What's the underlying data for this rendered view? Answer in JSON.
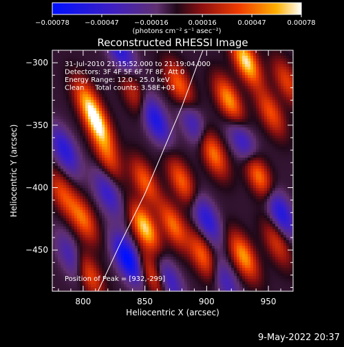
{
  "chart_data": {
    "type": "heatmap",
    "title": "Reconstructed RHESSI Image",
    "xlabel": "Heliocentric X (arcsec)",
    "ylabel": "Heliocentric Y (arcsec)",
    "xlim": [
      775,
      970
    ],
    "ylim": [
      -483,
      -290
    ],
    "xticks": [
      {
        "v": 800,
        "label": "800"
      },
      {
        "v": 850,
        "label": "850"
      },
      {
        "v": 900,
        "label": "900"
      },
      {
        "v": 950,
        "label": "950"
      }
    ],
    "yticks": [
      {
        "v": -300,
        "label": "−300"
      },
      {
        "v": -350,
        "label": "−350"
      },
      {
        "v": -400,
        "label": "−400"
      },
      {
        "v": -450,
        "label": "−450"
      }
    ],
    "annotations": [
      "31-Jul-2010 21:15:52.000 to 21:19:04.000",
      "Detectors: 3F 4F 5F 6F 7F 8F, Att 0",
      "Energy Range: 12.0 - 25.0 keV",
      "Clean     Total counts: 3.58E+03"
    ],
    "peak_label": "Position of Peak = [932,-299]",
    "colorbar": {
      "range": [
        -0.00078,
        0.00078
      ],
      "tick_values": [
        -0.00078,
        -0.00047,
        -0.00016,
        0.00016,
        0.00047,
        0.00078
      ],
      "ticks": [
        "−0.00078",
        "−0.00047",
        "−0.00016",
        "0.00016",
        "0.00047",
        "0.00078"
      ],
      "units": "(photons cm⁻² s⁻¹ asec⁻²)"
    },
    "limb_curve": [
      [
        812,
        -483
      ],
      [
        830,
        -445
      ],
      [
        850,
        -405
      ],
      [
        865,
        -370
      ],
      [
        880,
        -335
      ],
      [
        893,
        -300
      ],
      [
        897,
        -290
      ]
    ],
    "blobs": [
      {
        "x": 932,
        "y": -299,
        "v": 0.00078
      },
      {
        "x": 918,
        "y": -330,
        "v": 0.00062
      },
      {
        "x": 878,
        "y": -318,
        "v": 0.0005
      },
      {
        "x": 842,
        "y": -325,
        "v": 0.00035
      },
      {
        "x": 812,
        "y": -350,
        "v": 0.0007
      },
      {
        "x": 803,
        "y": -330,
        "v": 0.0005
      },
      {
        "x": 905,
        "y": -372,
        "v": 0.00058
      },
      {
        "x": 880,
        "y": -395,
        "v": 0.0005
      },
      {
        "x": 850,
        "y": -395,
        "v": 0.00048
      },
      {
        "x": 820,
        "y": -375,
        "v": 0.00038
      },
      {
        "x": 942,
        "y": -390,
        "v": 0.0006
      },
      {
        "x": 952,
        "y": -340,
        "v": 0.00045
      },
      {
        "x": 850,
        "y": -432,
        "v": 0.00075
      },
      {
        "x": 873,
        "y": -430,
        "v": 0.00052
      },
      {
        "x": 800,
        "y": -425,
        "v": 0.0005
      },
      {
        "x": 783,
        "y": -405,
        "v": 0.0004
      },
      {
        "x": 930,
        "y": -455,
        "v": 0.00062
      },
      {
        "x": 897,
        "y": -455,
        "v": 0.0005
      },
      {
        "x": 856,
        "y": -470,
        "v": 0.0004
      },
      {
        "x": 805,
        "y": -470,
        "v": 0.00045
      },
      {
        "x": 957,
        "y": -445,
        "v": 0.00035
      },
      {
        "x": 965,
        "y": -315,
        "v": 0.0004
      },
      {
        "x": 836,
        "y": -457,
        "v": -0.00078
      },
      {
        "x": 858,
        "y": -345,
        "v": -0.0006
      },
      {
        "x": 830,
        "y": -290,
        "v": -0.0005
      },
      {
        "x": 900,
        "y": -425,
        "v": -0.0005
      },
      {
        "x": 960,
        "y": -420,
        "v": -0.00055
      },
      {
        "x": 785,
        "y": -370,
        "v": -0.0005
      },
      {
        "x": 930,
        "y": -365,
        "v": -0.00045
      },
      {
        "x": 890,
        "y": -350,
        "v": -0.0004
      },
      {
        "x": 820,
        "y": -405,
        "v": -0.0004
      },
      {
        "x": 870,
        "y": -475,
        "v": -0.0004
      },
      {
        "x": 915,
        "y": -475,
        "v": -0.00035
      },
      {
        "x": 790,
        "y": -455,
        "v": -0.00035
      }
    ]
  },
  "footer": {
    "timestamp": "9-May-2022 20:37"
  }
}
